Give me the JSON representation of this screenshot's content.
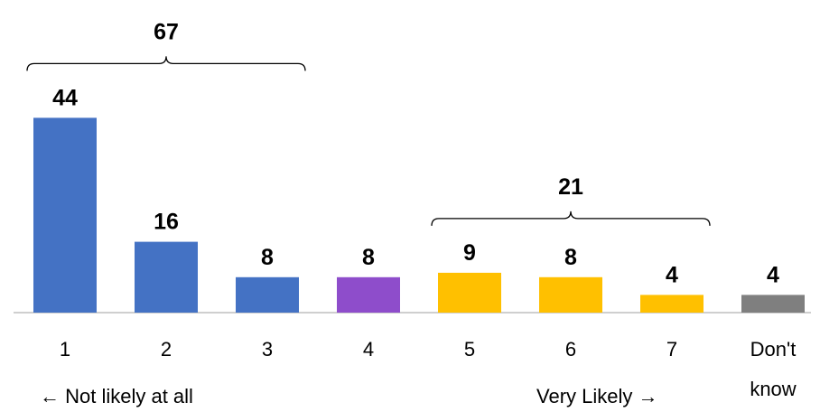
{
  "chart_data": {
    "type": "bar",
    "categories": [
      "1",
      "2",
      "3",
      "4",
      "5",
      "6",
      "7",
      "Don't know"
    ],
    "values": [
      44,
      16,
      8,
      8,
      9,
      8,
      4,
      4
    ],
    "data_labels": [
      "44",
      "16",
      "8",
      "8",
      "9",
      "8",
      "4",
      "4"
    ],
    "colors": [
      "#4472C4",
      "#4472C4",
      "#4472C4",
      "#8E4DCB",
      "#FFC000",
      "#FFC000",
      "#FFC000",
      "#7F7F7F"
    ],
    "groups": [
      {
        "label": "67",
        "from": 0,
        "to": 2
      },
      {
        "label": "21",
        "from": 4,
        "to": 6
      }
    ],
    "annotations": {
      "left": "← Not likely at all",
      "right": "Very Likely →"
    },
    "ylim": [
      0,
      46
    ],
    "grid": false,
    "legend": "none"
  }
}
